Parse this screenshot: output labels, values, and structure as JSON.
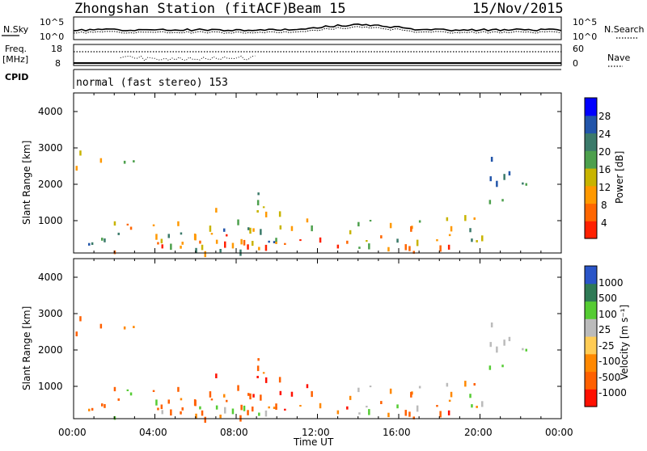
{
  "header": {
    "title": "Zhongshan Station (fitACF)",
    "beam": "Beam 15",
    "date": "15/Nov/2015"
  },
  "aux_panels": {
    "nsky_label": "N.Sky",
    "nsearch_label": "N.Search",
    "nave_label": "Nave",
    "freq_label_1": "Freq.",
    "freq_label_2": "[MHz]",
    "freq_ticks": [
      "18",
      "8"
    ],
    "nave_ticks": [
      "60",
      "0"
    ],
    "noise_ticks_left": [
      "10^5",
      "10^0"
    ],
    "noise_ticks_right": [
      "10^5",
      "10^0"
    ],
    "cpid_label": "CPID",
    "cpid_text": "normal (fast stereo) 153"
  },
  "colors": {
    "power": [
      "#0000ff",
      "#2255aa",
      "#3b7a6a",
      "#4da04d",
      "#c8b400",
      "#ff9900",
      "#ff6600",
      "#ff2000"
    ],
    "velocity": [
      "#2a55c8",
      "#2f7a55",
      "#55cc33",
      "#bbbbbb",
      "#ffcc55",
      "#ff8800",
      "#ff6000",
      "#ff1000"
    ]
  },
  "chart_data": [
    {
      "type": "heatmap",
      "name": "power",
      "ylabel": "Slant Range [km]",
      "yticks": [
        "4000",
        "3000",
        "2000",
        "1000"
      ],
      "colorbar_label": "Power [dB]",
      "colorbar_ticks": [
        "28",
        "24",
        "20",
        "16",
        "12",
        "8",
        "4"
      ],
      "xlim_hours": [
        0,
        24
      ]
    },
    {
      "type": "heatmap",
      "name": "velocity",
      "ylabel": "Slant Range [km]",
      "yticks": [
        "4000",
        "3000",
        "2000",
        "1000"
      ],
      "colorbar_label": "Velocity [m s⁻¹]",
      "colorbar_ticks": [
        "1000",
        "500",
        "100",
        "25",
        "-25",
        "-100",
        "-500",
        "-1000"
      ],
      "xlim_hours": [
        0,
        24
      ]
    }
  ],
  "xaxis": {
    "ticks": [
      "00:00",
      "04:00",
      "08:00",
      "12:00",
      "16:00",
      "20:00",
      "00:00"
    ],
    "label": "Time UT"
  }
}
